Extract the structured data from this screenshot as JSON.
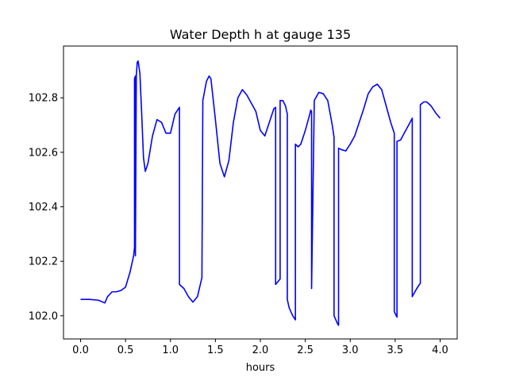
{
  "chart_data": {
    "type": "line",
    "title": "Water Depth h at gauge 135",
    "xlabel": "hours",
    "ylabel": "",
    "xlim": [
      -0.19,
      4.19
    ],
    "ylim": [
      101.915,
      102.99
    ],
    "xticks": [
      0.0,
      0.5,
      1.0,
      1.5,
      2.0,
      2.5,
      3.0,
      3.5,
      4.0
    ],
    "xtick_labels": [
      "0.0",
      "0.5",
      "1.0",
      "1.5",
      "2.0",
      "2.5",
      "3.0",
      "3.5",
      "4.0"
    ],
    "yticks": [
      102.0,
      102.2,
      102.4,
      102.6,
      102.8
    ],
    "ytick_labels": [
      "102.0",
      "102.2",
      "102.4",
      "102.6",
      "102.8"
    ],
    "grid": false,
    "series": [
      {
        "color": "#0000ff",
        "x": [
          0.0,
          0.1,
          0.2,
          0.27,
          0.3,
          0.35,
          0.4,
          0.45,
          0.5,
          0.55,
          0.59,
          0.6,
          0.6,
          0.61,
          0.61,
          0.62,
          0.63,
          0.64,
          0.66,
          0.68,
          0.7,
          0.72,
          0.75,
          0.8,
          0.85,
          0.9,
          0.95,
          1.0,
          1.05,
          1.1,
          1.1,
          1.15,
          1.2,
          1.25,
          1.3,
          1.35,
          1.36,
          1.4,
          1.43,
          1.45,
          1.5,
          1.55,
          1.6,
          1.65,
          1.7,
          1.75,
          1.8,
          1.85,
          1.9,
          1.95,
          2.0,
          2.05,
          2.1,
          2.15,
          2.17,
          2.17,
          2.22,
          2.22,
          2.25,
          2.28,
          2.3,
          2.3,
          2.3,
          2.32,
          2.36,
          2.39,
          2.39,
          2.42,
          2.45,
          2.5,
          2.55,
          2.56,
          2.57,
          2.57,
          2.6,
          2.65,
          2.7,
          2.75,
          2.8,
          2.82,
          2.82,
          2.86,
          2.87,
          2.87,
          2.9,
          2.95,
          3.0,
          3.05,
          3.1,
          3.15,
          3.2,
          3.25,
          3.3,
          3.35,
          3.4,
          3.45,
          3.49,
          3.49,
          3.52,
          3.52,
          3.56,
          3.6,
          3.65,
          3.69,
          3.69,
          3.74,
          3.78,
          3.78,
          3.82,
          3.85,
          3.9,
          3.95,
          4.0
        ],
        "y": [
          102.06,
          102.06,
          102.057,
          102.047,
          102.07,
          102.088,
          102.088,
          102.093,
          102.105,
          102.16,
          102.22,
          102.25,
          102.87,
          102.88,
          102.22,
          102.88,
          102.93,
          102.935,
          102.89,
          102.74,
          102.58,
          102.53,
          102.56,
          102.66,
          102.72,
          102.71,
          102.67,
          102.67,
          102.74,
          102.765,
          102.115,
          102.1,
          102.07,
          102.05,
          102.07,
          102.14,
          102.79,
          102.86,
          102.88,
          102.87,
          102.72,
          102.56,
          102.51,
          102.57,
          102.71,
          102.8,
          102.83,
          102.81,
          102.78,
          102.75,
          102.68,
          102.66,
          102.71,
          102.76,
          102.765,
          102.115,
          102.135,
          102.79,
          102.79,
          102.77,
          102.74,
          102.71,
          102.06,
          102.03,
          102.0,
          101.985,
          102.63,
          102.62,
          102.63,
          102.68,
          102.74,
          102.755,
          102.75,
          102.1,
          102.79,
          102.82,
          102.815,
          102.79,
          102.7,
          102.655,
          102.0,
          101.97,
          101.965,
          102.615,
          102.61,
          102.605,
          102.63,
          102.66,
          102.71,
          102.76,
          102.815,
          102.84,
          102.85,
          102.83,
          102.77,
          102.71,
          102.67,
          102.015,
          101.995,
          102.64,
          102.645,
          102.67,
          102.7,
          102.725,
          102.07,
          102.1,
          102.12,
          102.775,
          102.785,
          102.785,
          102.77,
          102.745,
          102.725
        ]
      }
    ]
  }
}
